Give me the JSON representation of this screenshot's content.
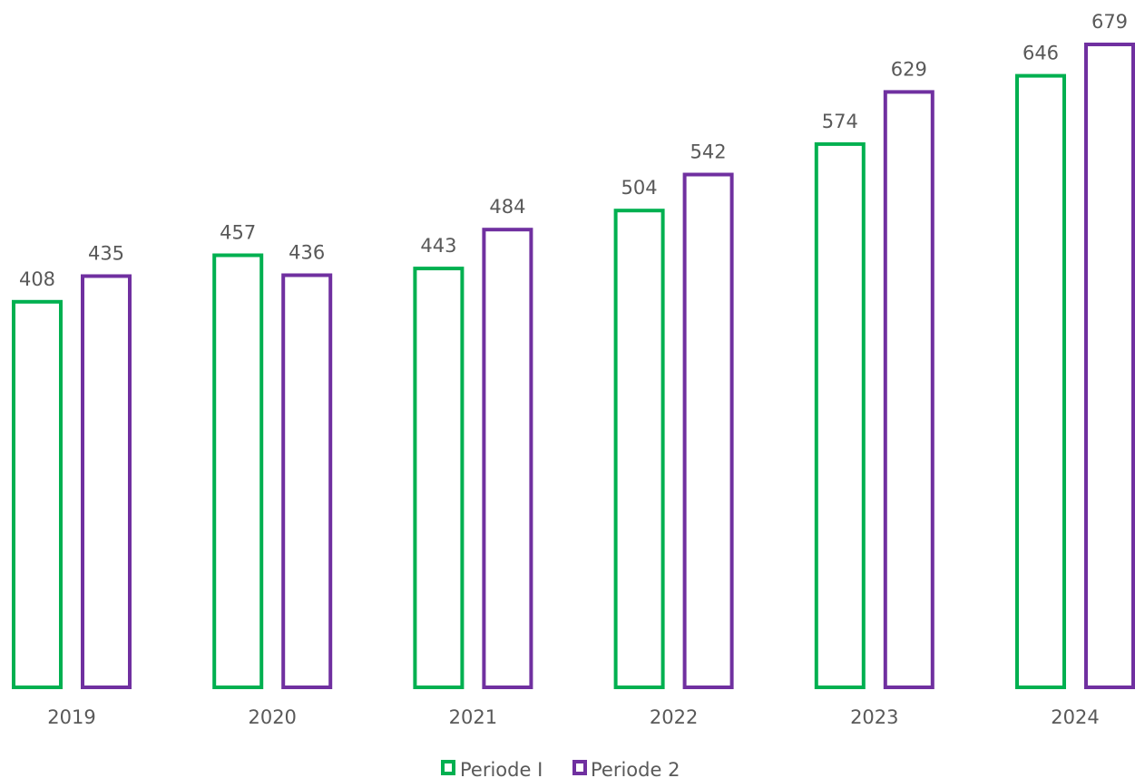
{
  "chart_data": {
    "type": "bar",
    "categories": [
      "2019",
      "2020",
      "2021",
      "2022",
      "2023",
      "2024"
    ],
    "series": [
      {
        "name": "Periode I",
        "values": [
          408,
          457,
          443,
          504,
          574,
          646
        ],
        "color": "#00b050"
      },
      {
        "name": "Periode 2",
        "values": [
          435,
          436,
          484,
          542,
          629,
          679
        ],
        "color": "#7030a0"
      }
    ],
    "bar_style": "outline",
    "ylim": [
      0,
      679
    ],
    "grid": false,
    "legend_position": "bottom-center",
    "title": "",
    "xlabel": "",
    "ylabel": ""
  }
}
